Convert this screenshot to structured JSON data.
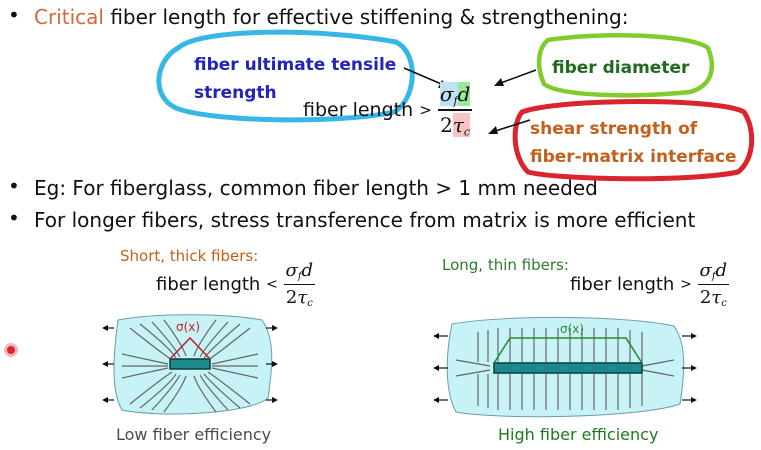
{
  "bullets": {
    "b1_highlight": "Critical",
    "b1_rest": "fiber length for effective stiffening & strengthening:",
    "b2": "Eg: For fiberglass, common fiber length > 1 mm needed",
    "b3": "For longer fibers, stress transference from matrix is more efficient"
  },
  "formula": {
    "lhs": "fiber  length",
    "gt": ">",
    "lt": "<",
    "sigma": "σ",
    "f": "f",
    "d": "d",
    "two": "2",
    "tau": "τ",
    "c": "c"
  },
  "callouts": {
    "tensile_line1": "fiber ultimate tensile",
    "tensile_line2": "strength",
    "diameter": "fiber diameter",
    "shear_line1": "shear strength of",
    "shear_line2": "fiber-matrix interface"
  },
  "left_panel": {
    "title": "Short, thick fibers:",
    "sigma_label": "σ(x)",
    "caption": "Low fiber efficiency"
  },
  "right_panel": {
    "title": "Long, thin fibers:",
    "sigma_label": "σ(x)",
    "caption": "High fiber efficiency"
  },
  "colors": {
    "accent_orange": "#d2693a",
    "tensile_text": "#2424b8",
    "tensile_ring": "#38b7e6",
    "diameter_text": "#1e6b1e",
    "diameter_ring": "#7fcc2a",
    "shear_text": "#c2601c",
    "shear_ring": "#d8252e",
    "matrix_fill": "#c7f3f6",
    "fiber_fill": "#1f8a8e",
    "left_title": "#c2601c",
    "right_title": "#2e7d2e",
    "left_caption": "#4a4a4a",
    "right_caption": "#1d7a1d",
    "sigma_left": "#c8202a",
    "sigma_right": "#2e8b2e"
  }
}
